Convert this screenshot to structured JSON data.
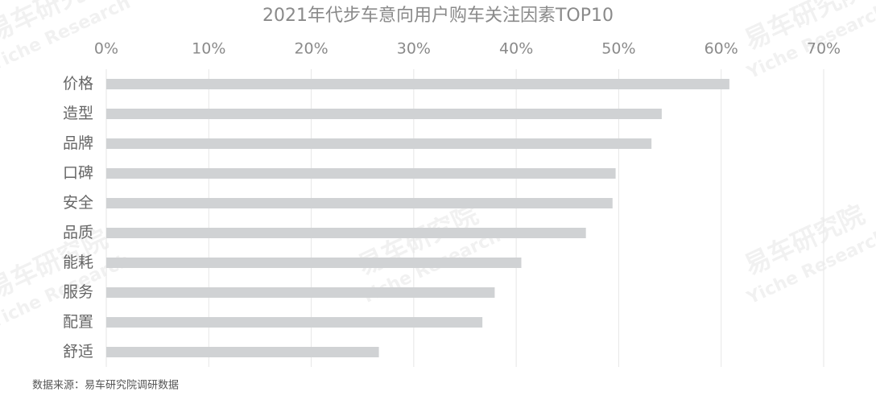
{
  "chart_data": {
    "type": "barh",
    "title": "2021年代步车意向用户购车关注因素TOP10",
    "categories": [
      "价格",
      "造型",
      "品牌",
      "口碑",
      "安全",
      "品质",
      "能耗",
      "服务",
      "配置",
      "舒适"
    ],
    "values": [
      60.8,
      54.2,
      53.2,
      49.7,
      49.4,
      46.8,
      40.5,
      37.9,
      36.7,
      26.6
    ],
    "color": "#d0d2d4",
    "xlim": [
      0,
      70
    ],
    "xticks": [
      {
        "value": 0,
        "label": "0%"
      },
      {
        "value": 10,
        "label": "10%"
      },
      {
        "value": 20,
        "label": "20%"
      },
      {
        "value": 30,
        "label": "30%"
      },
      {
        "value": 40,
        "label": "40%"
      },
      {
        "value": 50,
        "label": "50%"
      },
      {
        "value": 60,
        "label": "60%"
      },
      {
        "value": 70,
        "label": "70%"
      }
    ],
    "grid": true,
    "source": "数据来源：易车研究院调研数据",
    "watermark": [
      "易车研究院",
      "Yiche Research"
    ]
  }
}
